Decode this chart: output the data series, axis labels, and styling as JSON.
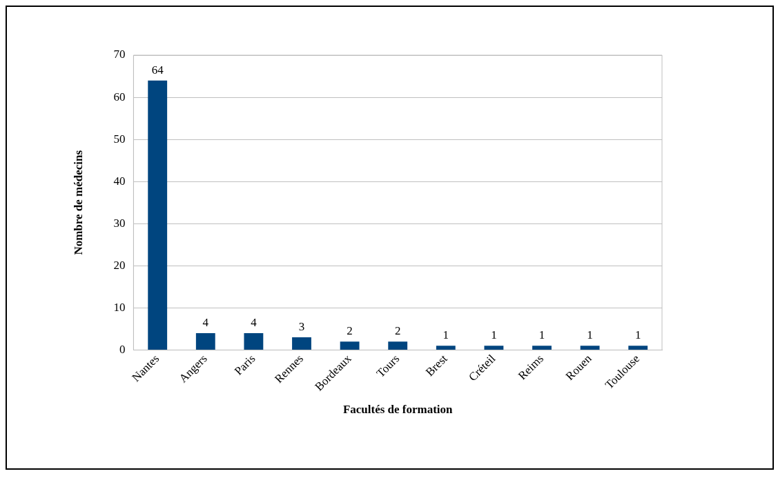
{
  "chart_data": {
    "type": "bar",
    "xlabel": "Facultés de formation",
    "ylabel": "Nombre de médecins",
    "categories": [
      "Nantes",
      "Angers",
      "Paris",
      "Rennes",
      "Bordeaux",
      "Tours",
      "Brest",
      "Créteil",
      "Reims",
      "Rouen",
      "Toulouse"
    ],
    "values": [
      64,
      4,
      4,
      3,
      2,
      2,
      1,
      1,
      1,
      1,
      1
    ],
    "color": "#00457f",
    "ylim": [
      0,
      70
    ],
    "yticks": [
      0,
      10,
      20,
      30,
      40,
      50,
      60,
      70
    ],
    "grid": "y",
    "data_labels": true,
    "legend": false
  }
}
